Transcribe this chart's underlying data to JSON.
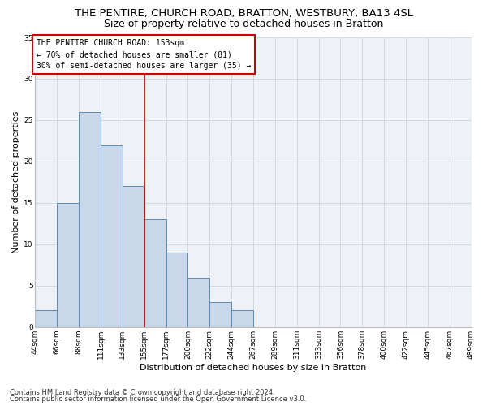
{
  "title": "THE PENTIRE, CHURCH ROAD, BRATTON, WESTBURY, BA13 4SL",
  "subtitle": "Size of property relative to detached houses in Bratton",
  "xlabel": "Distribution of detached houses by size in Bratton",
  "ylabel": "Number of detached properties",
  "bar_values": [
    2,
    15,
    26,
    22,
    17,
    13,
    9,
    6,
    3,
    2,
    0,
    0,
    0,
    0,
    0,
    0,
    0,
    0,
    0,
    0
  ],
  "x_labels": [
    "44sqm",
    "66sqm",
    "88sqm",
    "111sqm",
    "133sqm",
    "155sqm",
    "177sqm",
    "200sqm",
    "222sqm",
    "244sqm",
    "267sqm",
    "289sqm",
    "311sqm",
    "333sqm",
    "356sqm",
    "378sqm",
    "400sqm",
    "422sqm",
    "445sqm",
    "467sqm",
    "489sqm"
  ],
  "bar_color": "#c8d8ea",
  "bar_edge_color": "#5a8ab5",
  "ylim": [
    0,
    35
  ],
  "yticks": [
    0,
    5,
    10,
    15,
    20,
    25,
    30,
    35
  ],
  "annotation_title": "THE PENTIRE CHURCH ROAD: 153sqm",
  "annotation_line1": "← 70% of detached houses are smaller (81)",
  "annotation_line2": "30% of semi-detached houses are larger (35) →",
  "footnote1": "Contains HM Land Registry data © Crown copyright and database right 2024.",
  "footnote2": "Contains public sector information licensed under the Open Government Licence v3.0.",
  "bg_color": "#eef2f7",
  "grid_color": "#d0d8e0",
  "ref_line_color": "#cc0000",
  "title_fontsize": 9.5,
  "subtitle_fontsize": 9,
  "axis_label_fontsize": 8,
  "tick_fontsize": 6.5,
  "annotation_fontsize": 7,
  "footnote_fontsize": 6
}
